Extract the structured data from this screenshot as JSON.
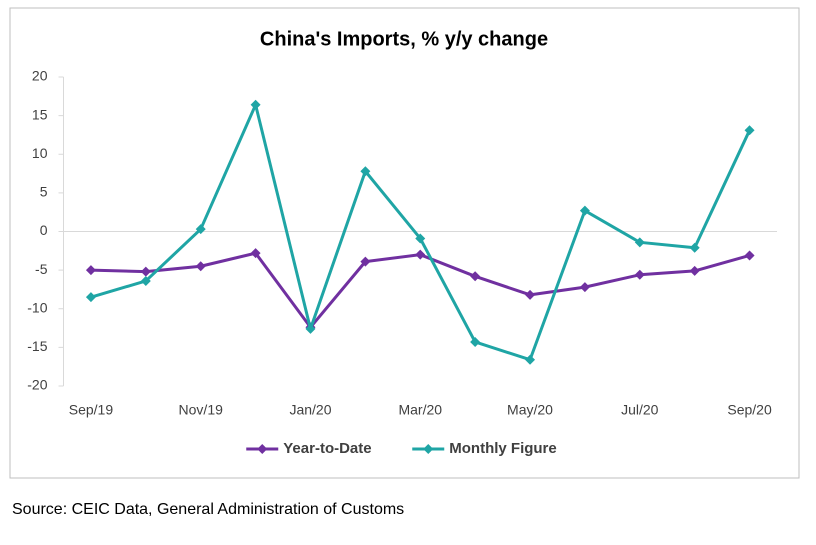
{
  "chart_data": {
    "type": "line",
    "title": "China's Imports, % y/y change",
    "categories": [
      "Sep/19",
      null,
      "Nov/19",
      null,
      "Jan/20",
      null,
      "Mar/20",
      null,
      "May/20",
      null,
      "Jul/20",
      null,
      "Sep/20"
    ],
    "series": [
      {
        "name": "Year-to-Date",
        "color": "#7030a0",
        "values": [
          -5.0,
          -5.2,
          -4.5,
          -2.8,
          -12.4,
          -3.9,
          -3.0,
          -5.8,
          -8.2,
          -7.2,
          -5.6,
          -5.1,
          -3.1
        ]
      },
      {
        "name": "Monthly Figure",
        "color": "#1fa5a5",
        "values": [
          -8.5,
          -6.4,
          0.3,
          16.4,
          -12.6,
          7.8,
          -0.9,
          -14.3,
          -16.6,
          2.7,
          -1.4,
          -2.1,
          13.1
        ]
      }
    ],
    "ylim": [
      -20,
      20
    ],
    "yticks": [
      -20,
      -15,
      -10,
      -5,
      0,
      5,
      10,
      15,
      20
    ],
    "grid": false,
    "legend": "bottom"
  },
  "source": "Source: CEIC Data, General Administration of Customs"
}
